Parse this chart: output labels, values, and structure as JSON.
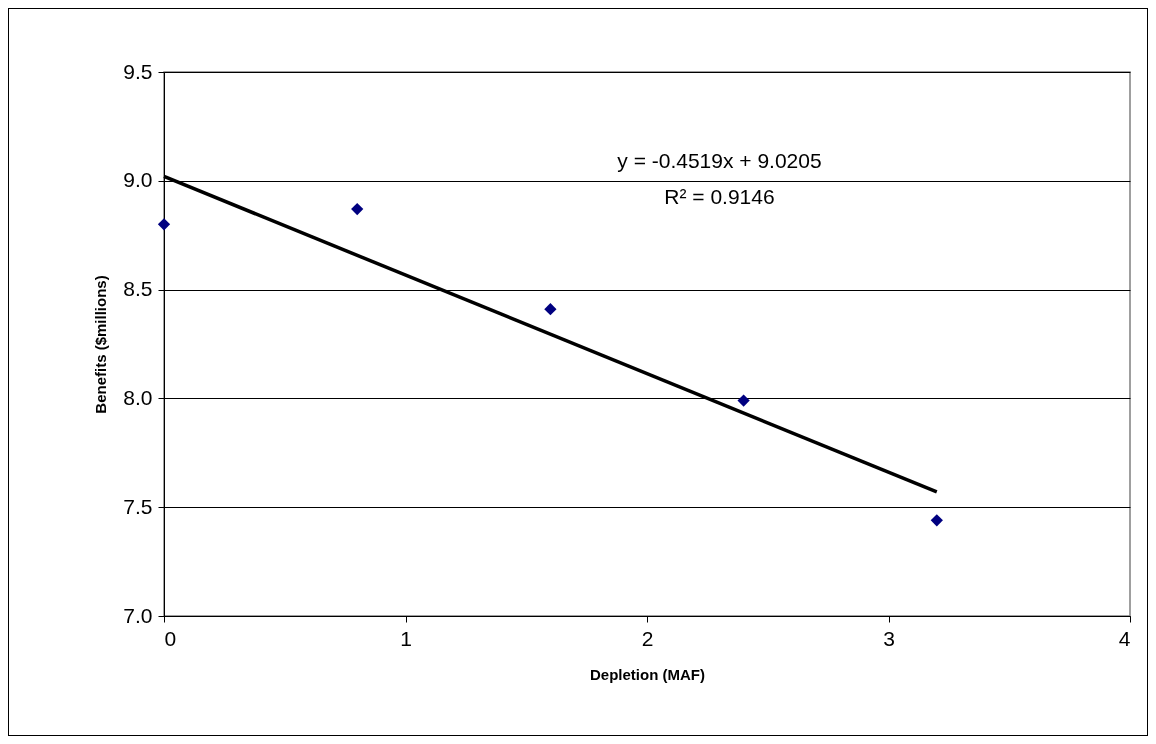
{
  "chart_data": {
    "type": "scatter",
    "xlabel": "Depletion (MAF)",
    "ylabel": "Benefits ($millions)",
    "annotations": [
      "y = -0.4519x + 9.0205",
      "R² = 0.9146"
    ],
    "x": [
      0,
      0.8,
      1.6,
      2.4,
      3.2
    ],
    "series": [
      {
        "color": "#000080",
        "marker": "diamond",
        "values": [
          8.8,
          8.87,
          8.41,
          7.99,
          7.44
        ]
      },
      {
        "type": "line",
        "x": [
          0,
          3.2
        ],
        "values": [
          9.02,
          7.57
        ],
        "color": "#000000",
        "line_style": "solid",
        "marker": "none"
      }
    ],
    "xlim": [
      0,
      4
    ],
    "xticks": [
      0,
      1,
      2,
      3,
      4
    ],
    "ylim": [
      7,
      9.5
    ],
    "yticks": [
      {
        "value": 7,
        "label": "7.0"
      },
      {
        "value": 7.5,
        "label": "7.5"
      },
      {
        "value": 8,
        "label": "8.0"
      },
      {
        "value": 8.5,
        "label": "8.5"
      },
      {
        "value": 9,
        "label": "9.0"
      },
      {
        "value": 9.5,
        "label": "9.5"
      }
    ],
    "grid": "y",
    "legend": false
  }
}
